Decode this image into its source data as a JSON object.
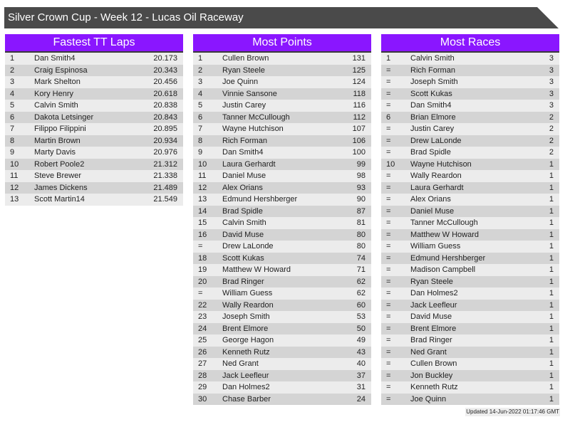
{
  "title": "Silver Crown Cup - Week 12 - Lucas Oil Raceway",
  "tables": [
    {
      "heading": "Fastest TT Laps",
      "rows": [
        [
          "1",
          "Dan Smith4",
          "20.173"
        ],
        [
          "2",
          "Craig Espinosa",
          "20.343"
        ],
        [
          "3",
          "Mark Shelton",
          "20.456"
        ],
        [
          "4",
          "Kory Henry",
          "20.618"
        ],
        [
          "5",
          "Calvin Smith",
          "20.838"
        ],
        [
          "6",
          "Dakota Letsinger",
          "20.843"
        ],
        [
          "7",
          "Filippo Filippini",
          "20.895"
        ],
        [
          "8",
          "Martin Brown",
          "20.934"
        ],
        [
          "9",
          "Marty Davis",
          "20.976"
        ],
        [
          "10",
          "Robert Poole2",
          "21.312"
        ],
        [
          "11",
          "Steve Brewer",
          "21.338"
        ],
        [
          "12",
          "James Dickens",
          "21.489"
        ],
        [
          "13",
          "Scott Martin14",
          "21.549"
        ]
      ]
    },
    {
      "heading": "Most Points",
      "rows": [
        [
          "1",
          "Cullen Brown",
          "131"
        ],
        [
          "2",
          "Ryan Steele",
          "125"
        ],
        [
          "3",
          "Joe Quinn",
          "124"
        ],
        [
          "4",
          "Vinnie Sansone",
          "118"
        ],
        [
          "5",
          "Justin Carey",
          "116"
        ],
        [
          "6",
          "Tanner McCullough",
          "112"
        ],
        [
          "7",
          "Wayne Hutchison",
          "107"
        ],
        [
          "8",
          "Rich Forman",
          "106"
        ],
        [
          "9",
          "Dan Smith4",
          "100"
        ],
        [
          "10",
          "Laura Gerhardt",
          "99"
        ],
        [
          "11",
          "Daniel Muse",
          "98"
        ],
        [
          "12",
          "Alex Orians",
          "93"
        ],
        [
          "13",
          "Edmund Hershberger",
          "90"
        ],
        [
          "14",
          "Brad Spidle",
          "87"
        ],
        [
          "15",
          "Calvin Smith",
          "81"
        ],
        [
          "16",
          "David Muse",
          "80"
        ],
        [
          "=",
          "Drew LaLonde",
          "80"
        ],
        [
          "18",
          "Scott Kukas",
          "74"
        ],
        [
          "19",
          "Matthew W Howard",
          "71"
        ],
        [
          "20",
          "Brad Ringer",
          "62"
        ],
        [
          "=",
          "William Guess",
          "62"
        ],
        [
          "22",
          "Wally Reardon",
          "60"
        ],
        [
          "23",
          "Joseph Smith",
          "53"
        ],
        [
          "24",
          "Brent Elmore",
          "50"
        ],
        [
          "25",
          "George Hagon",
          "49"
        ],
        [
          "26",
          "Kenneth Rutz",
          "43"
        ],
        [
          "27",
          "Ned Grant",
          "40"
        ],
        [
          "28",
          "Jack Leefleur",
          "37"
        ],
        [
          "29",
          "Dan Holmes2",
          "31"
        ],
        [
          "30",
          "Chase Barber",
          "24"
        ]
      ]
    },
    {
      "heading": "Most Races",
      "rows": [
        [
          "1",
          "Calvin Smith",
          "3"
        ],
        [
          "=",
          "Rich Forman",
          "3"
        ],
        [
          "=",
          "Joseph Smith",
          "3"
        ],
        [
          "=",
          "Scott Kukas",
          "3"
        ],
        [
          "=",
          "Dan Smith4",
          "3"
        ],
        [
          "6",
          "Brian Elmore",
          "2"
        ],
        [
          "=",
          "Justin Carey",
          "2"
        ],
        [
          "=",
          "Drew LaLonde",
          "2"
        ],
        [
          "=",
          "Brad Spidle",
          "2"
        ],
        [
          "10",
          "Wayne Hutchison",
          "1"
        ],
        [
          "=",
          "Wally Reardon",
          "1"
        ],
        [
          "=",
          "Laura Gerhardt",
          "1"
        ],
        [
          "=",
          "Alex Orians",
          "1"
        ],
        [
          "=",
          "Daniel Muse",
          "1"
        ],
        [
          "=",
          "Tanner McCullough",
          "1"
        ],
        [
          "=",
          "Matthew W Howard",
          "1"
        ],
        [
          "=",
          "William Guess",
          "1"
        ],
        [
          "=",
          "Edmund Hershberger",
          "1"
        ],
        [
          "=",
          "Madison Campbell",
          "1"
        ],
        [
          "=",
          "Ryan Steele",
          "1"
        ],
        [
          "=",
          "Dan Holmes2",
          "1"
        ],
        [
          "=",
          "Jack Leefleur",
          "1"
        ],
        [
          "=",
          "David Muse",
          "1"
        ],
        [
          "=",
          "Brent Elmore",
          "1"
        ],
        [
          "=",
          "Brad Ringer",
          "1"
        ],
        [
          "=",
          "Ned Grant",
          "1"
        ],
        [
          "=",
          "Cullen Brown",
          "1"
        ],
        [
          "=",
          "Jon Buckley",
          "1"
        ],
        [
          "=",
          "Kenneth Rutz",
          "1"
        ],
        [
          "=",
          "Joe Quinn",
          "1"
        ]
      ]
    }
  ],
  "updated": "Updated 14-Jun-2022 01:17:46 GMT",
  "colors": {
    "header": "#8a16ff",
    "title_bar": "#4a4a4a",
    "row_light": "#ececec",
    "row_dark": "#d4d4d4"
  }
}
